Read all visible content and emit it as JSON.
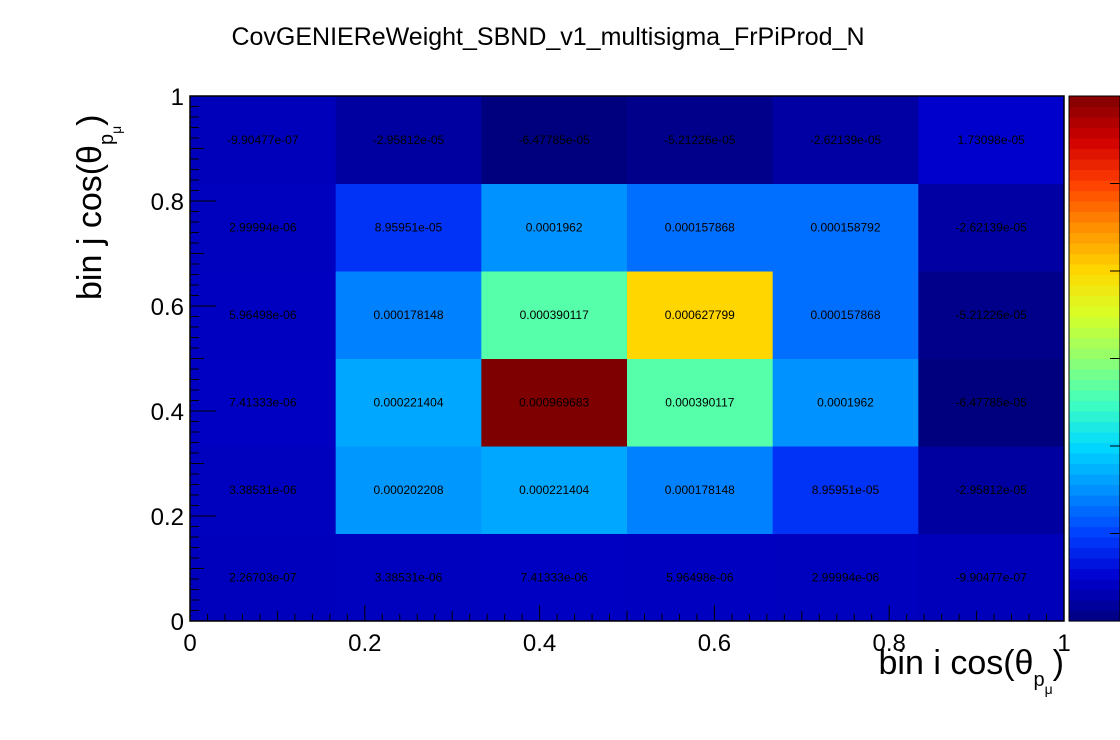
{
  "chart_data": {
    "type": "heatmap",
    "title": "CovGENIEReWeight_SBND_v1_multisigma_FrPiProd_N",
    "xlabel": {
      "main": "bin i cos(θ",
      "sub": "p",
      "subsub": "μ",
      "close": ")"
    },
    "ylabel": {
      "main": "bin j cos(θ",
      "sub": "p",
      "subsub": "μ",
      "close": ")"
    },
    "xlim": [
      0,
      1
    ],
    "ylim": [
      0,
      1
    ],
    "x_ticks": [
      "0",
      "0.2",
      "0.4",
      "0.6",
      "0.8",
      "1"
    ],
    "y_ticks": [
      "0",
      "0.2",
      "0.4",
      "0.6",
      "0.8",
      "1"
    ],
    "nx": 6,
    "ny": 6,
    "zlim": [
      -6.47785e-05,
      0.000969683
    ],
    "colorscale": [
      "#00007f",
      "#0000d0",
      "#0040ff",
      "#0090ff",
      "#00d8ff",
      "#40ffc0",
      "#90ff70",
      "#d8ff28",
      "#ffd800",
      "#ff9000",
      "#ff4000",
      "#d00000",
      "#7f0000"
    ],
    "z": [
      {
        "row": 0,
        "values": [
          2.26703e-07,
          3.38531e-06,
          7.41333e-06,
          5.96498e-06,
          2.99994e-06,
          -9.90477e-07
        ]
      },
      {
        "row": 1,
        "values": [
          3.38531e-06,
          0.000202208,
          0.000221404,
          0.000178148,
          8.95951e-05,
          -2.95812e-05
        ]
      },
      {
        "row": 2,
        "values": [
          7.41333e-06,
          0.000221404,
          0.000969683,
          0.000390117,
          0.0001962,
          -6.47785e-05
        ]
      },
      {
        "row": 3,
        "values": [
          5.96498e-06,
          0.000178148,
          0.000390117,
          0.000627799,
          0.000157868,
          -5.21226e-05
        ]
      },
      {
        "row": 4,
        "values": [
          2.99994e-06,
          8.95951e-05,
          0.0001962,
          0.000157868,
          0.000158792,
          -2.62139e-05
        ]
      },
      {
        "row": 5,
        "values": [
          -9.90477e-07,
          -2.95812e-05,
          -6.47785e-05,
          -5.21226e-05,
          -2.62139e-05,
          1.73098e-05
        ]
      }
    ],
    "labels": [
      {
        "row": 0,
        "values": [
          "2.26703e-07",
          "3.38531e-06",
          "7.41333e-06",
          "5.96498e-06",
          "2.99994e-06",
          "-9.90477e-07"
        ]
      },
      {
        "row": 1,
        "values": [
          "3.38531e-06",
          "0.000202208",
          "0.000221404",
          "0.000178148",
          "8.95951e-05",
          "-2.95812e-05"
        ]
      },
      {
        "row": 2,
        "values": [
          "7.41333e-06",
          "0.000221404",
          "0.000969683",
          "0.000390117",
          "0.0001962",
          "-6.47785e-05"
        ]
      },
      {
        "row": 3,
        "values": [
          "5.96498e-06",
          "0.000178148",
          "0.000390117",
          "0.000627799",
          "0.000157868",
          "-5.21226e-05"
        ]
      },
      {
        "row": 4,
        "values": [
          "2.99994e-06",
          "8.95951e-05",
          "0.0001962",
          "0.000157868",
          "0.000158792",
          "-2.62139e-05"
        ]
      },
      {
        "row": 5,
        "values": [
          "-9.90477e-07",
          "-2.95812e-05",
          "-6.47785e-05",
          "-5.21226e-05",
          "-2.62139e-05",
          "1.73098e-05"
        ]
      }
    ]
  }
}
